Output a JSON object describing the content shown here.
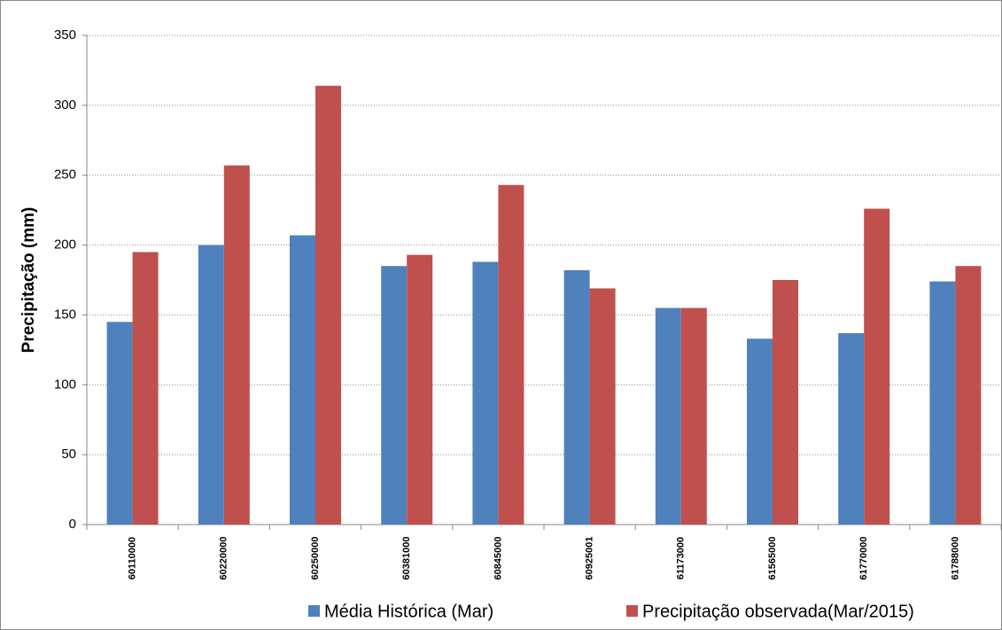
{
  "chart_data": {
    "type": "bar",
    "y_label": "Precipitação (mm)",
    "categories": [
      "60110000",
      "60220000",
      "60250000",
      "60381000",
      "60845000",
      "60925001",
      "61173000",
      "61565000",
      "61770000",
      "61788000"
    ],
    "series": [
      {
        "name": "Média Histórica (Mar)",
        "color": "#4f81bd",
        "values": [
          145,
          200,
          207,
          185,
          188,
          182,
          155,
          133,
          137,
          174
        ]
      },
      {
        "name": "Precipitação observada(Mar/2015)",
        "color": "#c0504d",
        "values": [
          195,
          257,
          314,
          193,
          243,
          169,
          155,
          175,
          226,
          185
        ]
      }
    ],
    "ylim": [
      0,
      350
    ],
    "yticks": [
      0,
      50,
      100,
      150,
      200,
      250,
      300,
      350
    ],
    "grid": true
  }
}
